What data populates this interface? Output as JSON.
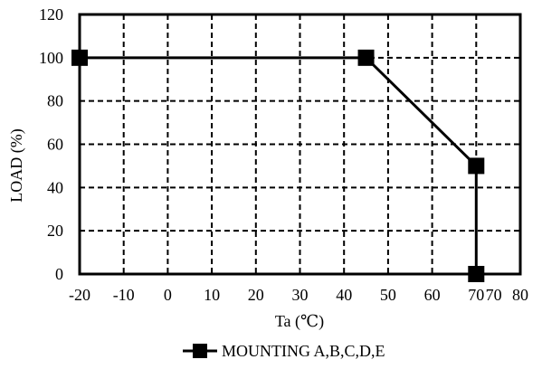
{
  "chart_data": {
    "type": "line",
    "xlabel": "Ta (℃)",
    "ylabel": "LOAD (%)",
    "xlim": [
      -20,
      80
    ],
    "ylim": [
      0,
      120
    ],
    "x_ticks": [
      "-20",
      "-10",
      "0",
      "10",
      "20",
      "30",
      "40",
      "50",
      "60",
      "70",
      "70",
      "80"
    ],
    "y_ticks": [
      "0",
      "20",
      "40",
      "60",
      "80",
      "100",
      "120"
    ],
    "grid": true,
    "legend": "bottom",
    "series": [
      {
        "name": "MOUNTING A,B,C,D,E",
        "color": "#000000",
        "marker": "square",
        "points": [
          {
            "x": -20,
            "y": 100
          },
          {
            "x": 45,
            "y": 100
          },
          {
            "x": 70,
            "y": 50
          },
          {
            "x": 70,
            "y": 0
          }
        ]
      }
    ]
  }
}
